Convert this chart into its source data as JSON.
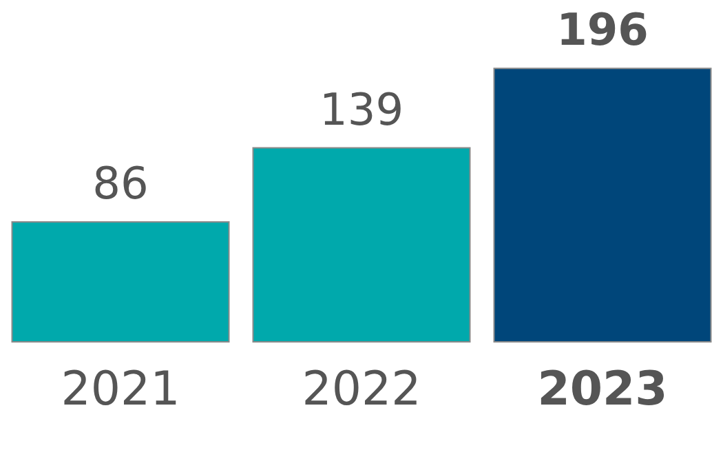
{
  "chart_data": {
    "type": "bar",
    "categories": [
      "2021",
      "2022",
      "2023"
    ],
    "values": [
      86,
      139,
      196
    ],
    "colors": [
      "#00a9ac",
      "#00a9ac",
      "#00467a"
    ],
    "data_labels": true
  }
}
